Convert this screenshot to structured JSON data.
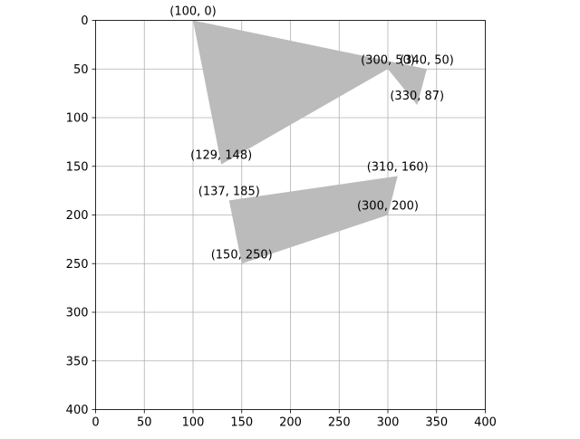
{
  "chart_data": {
    "type": "polygon",
    "xlim": [
      0,
      400
    ],
    "ylim": [
      400,
      0
    ],
    "y_inverted": true,
    "x_ticks": [
      0,
      50,
      100,
      150,
      200,
      250,
      300,
      350,
      400
    ],
    "y_ticks": [
      0,
      50,
      100,
      150,
      200,
      250,
      300,
      350,
      400
    ],
    "grid": true,
    "polygons": [
      {
        "fill": "#bbbbbb",
        "vertices": [
          [
            100,
            0
          ],
          [
            340,
            50
          ],
          [
            330,
            87
          ],
          [
            300,
            50
          ],
          [
            129,
            148
          ]
        ]
      },
      {
        "fill": "#bbbbbb",
        "vertices": [
          [
            137,
            185
          ],
          [
            310,
            160
          ],
          [
            300,
            200
          ],
          [
            150,
            250
          ]
        ]
      }
    ],
    "point_labels": [
      {
        "x": 100,
        "y": 0,
        "text": "(100, 0)"
      },
      {
        "x": 300,
        "y": 50,
        "text": "(300, 50)"
      },
      {
        "x": 340,
        "y": 50,
        "text": "(340, 50)"
      },
      {
        "x": 330,
        "y": 87,
        "text": "(330, 87)"
      },
      {
        "x": 129,
        "y": 148,
        "text": "(129, 148)"
      },
      {
        "x": 137,
        "y": 185,
        "text": "(137, 185)"
      },
      {
        "x": 310,
        "y": 160,
        "text": "(310, 160)"
      },
      {
        "x": 300,
        "y": 200,
        "text": "(300, 200)"
      },
      {
        "x": 150,
        "y": 250,
        "text": "(150, 250)"
      }
    ]
  }
}
